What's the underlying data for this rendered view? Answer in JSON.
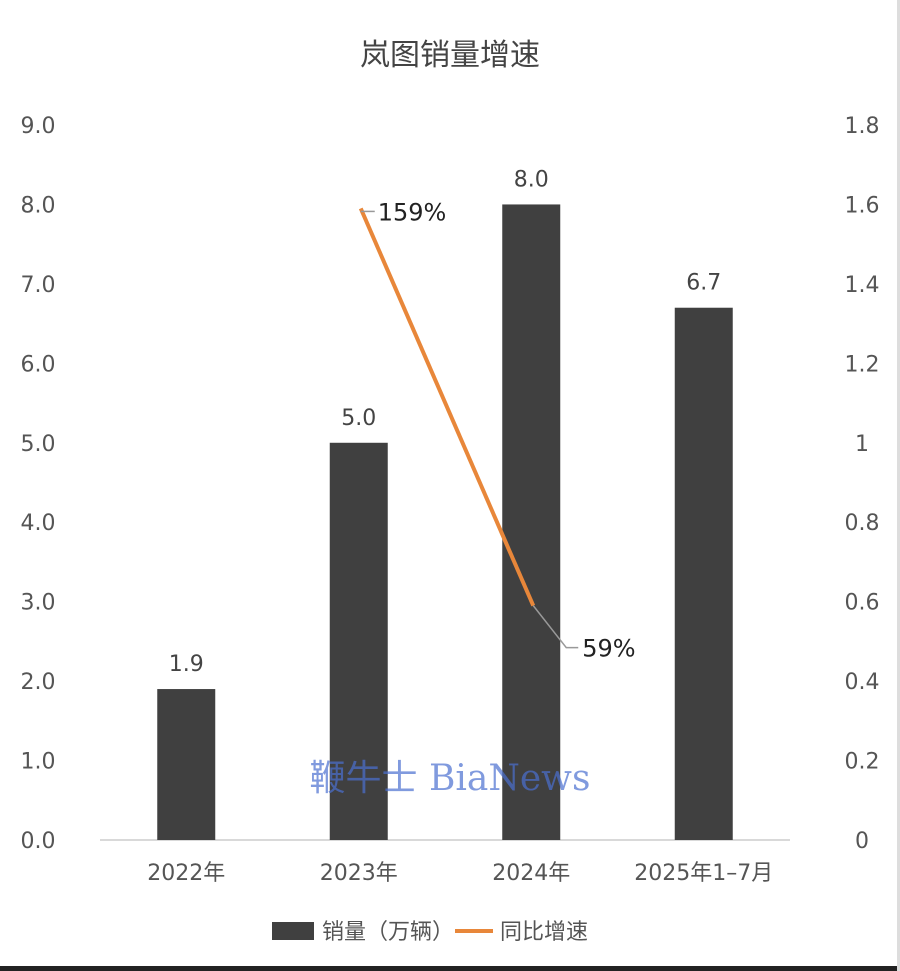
{
  "chart_data": {
    "type": "bar+line",
    "title": "岚图销量增速",
    "categories": [
      "2022年",
      "2023年",
      "2024年",
      "2025年1–7月"
    ],
    "series": [
      {
        "name": "销量（万辆）",
        "type": "bar",
        "axis": "left",
        "values": [
          1.9,
          5.0,
          8.0,
          6.7
        ],
        "labels": [
          "1.9",
          "5.0",
          "8.0",
          "6.7"
        ],
        "color": "#404040"
      },
      {
        "name": "同比增速",
        "type": "line",
        "axis": "right",
        "values": [
          null,
          1.59,
          0.59,
          null
        ],
        "labels": [
          null,
          "159%",
          "59%",
          null
        ],
        "color": "#E8873A"
      }
    ],
    "y_left": {
      "range": [
        0,
        9
      ],
      "ticks": [
        "0.0",
        "1.0",
        "2.0",
        "3.0",
        "4.0",
        "5.0",
        "6.0",
        "7.0",
        "8.0",
        "9.0"
      ]
    },
    "y_right": {
      "range": [
        0,
        1.8
      ],
      "ticks": [
        "0",
        "0.2",
        "0.4",
        "0.6",
        "0.8",
        "1",
        "1.2",
        "1.4",
        "1.6",
        "1.8"
      ]
    },
    "grid": false,
    "legend": "bottom",
    "watermark": "鞭牛士 BiaNews"
  }
}
